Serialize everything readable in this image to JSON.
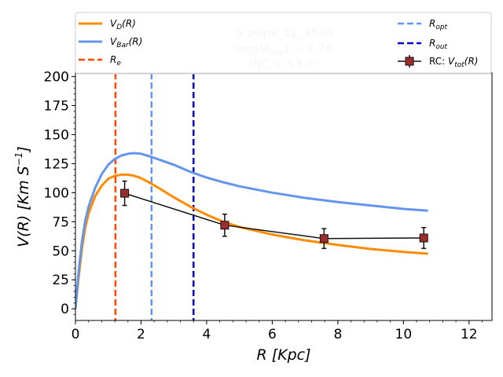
{
  "chart_data": {
    "type": "line",
    "title": "",
    "xlabel": "R [Kpc]",
    "ylabel": "V(R) [Km S^-1]",
    "xlim": [
      0,
      12.7
    ],
    "ylim": [
      -10,
      203
    ],
    "xticks": [
      0,
      2,
      4,
      6,
      8,
      10,
      12
    ],
    "yticks": [
      0,
      25,
      50,
      75,
      100,
      125,
      150,
      175,
      200
    ],
    "annotations": [
      "S-zvipe_z1_3500",
      "log(M_star) = 9.76",
      "INC = 53.0°"
    ],
    "series": [
      {
        "name": "V_D(R)",
        "color": "#ff8c00",
        "style": "solid",
        "x": [
          0.0,
          0.1,
          0.2,
          0.3,
          0.4,
          0.6,
          0.8,
          1.0,
          1.2,
          1.4,
          1.6,
          1.8,
          2.0,
          2.3,
          2.6,
          3.0,
          3.5,
          4.0,
          4.5,
          5.0,
          6.0,
          7.0,
          8.0,
          9.0,
          10.0,
          10.75
        ],
        "y": [
          0,
          28,
          52,
          70,
          82,
          97,
          106,
          112,
          114.5,
          115.5,
          115.5,
          114.5,
          112.5,
          108,
          103,
          96,
          88,
          81,
          75,
          70.5,
          64,
          59,
          55,
          51.5,
          49,
          47.5
        ]
      },
      {
        "name": "V_Bar(R)",
        "color": "#6495ed",
        "style": "solid",
        "x": [
          0.0,
          0.1,
          0.2,
          0.3,
          0.4,
          0.6,
          0.8,
          1.0,
          1.2,
          1.4,
          1.6,
          1.8,
          2.0,
          2.3,
          2.6,
          3.0,
          3.5,
          4.0,
          4.5,
          5.0,
          6.0,
          7.0,
          8.0,
          9.0,
          10.0,
          10.75
        ],
        "y": [
          0,
          33,
          58,
          76,
          88,
          104,
          116,
          124,
          129,
          132,
          133.5,
          134,
          133.5,
          131,
          128,
          124,
          118,
          113,
          109,
          105.5,
          100,
          95.5,
          92,
          89,
          86,
          84.5
        ]
      },
      {
        "name": "RC: V_tot(R)",
        "color": "#111111",
        "marker_color": "#9b2d2d",
        "style": "solid",
        "x": [
          1.5,
          4.55,
          7.58,
          10.62
        ],
        "y": [
          99.5,
          72,
          60.5,
          61
        ],
        "yerr": [
          10.5,
          9.5,
          8.5,
          9
        ]
      }
    ],
    "vlines": [
      {
        "name": "R_e",
        "x": 1.22,
        "color": "#ff4500",
        "style": "dashed"
      },
      {
        "name": "R_opt",
        "x": 2.32,
        "color": "#6495ed",
        "style": "dashed"
      },
      {
        "name": "R_out",
        "x": 3.6,
        "color": "#0000cd",
        "style": "dashed"
      }
    ],
    "legend": {
      "placement": "top",
      "entries": [
        {
          "label": "V_D(R)",
          "color": "#ff8c00",
          "kind": "solid"
        },
        {
          "label": "V_Bar(R)",
          "color": "#6495ed",
          "kind": "solid"
        },
        {
          "label": "R_e",
          "color": "#ff4500",
          "kind": "dashed"
        },
        {
          "label": "R_opt",
          "color": "#6495ed",
          "kind": "dashed"
        },
        {
          "label": "R_out",
          "color": "#0000cd",
          "kind": "dashed"
        },
        {
          "label": "RC: V_tot(R)",
          "color": "#111111",
          "kind": "marker"
        }
      ]
    }
  }
}
